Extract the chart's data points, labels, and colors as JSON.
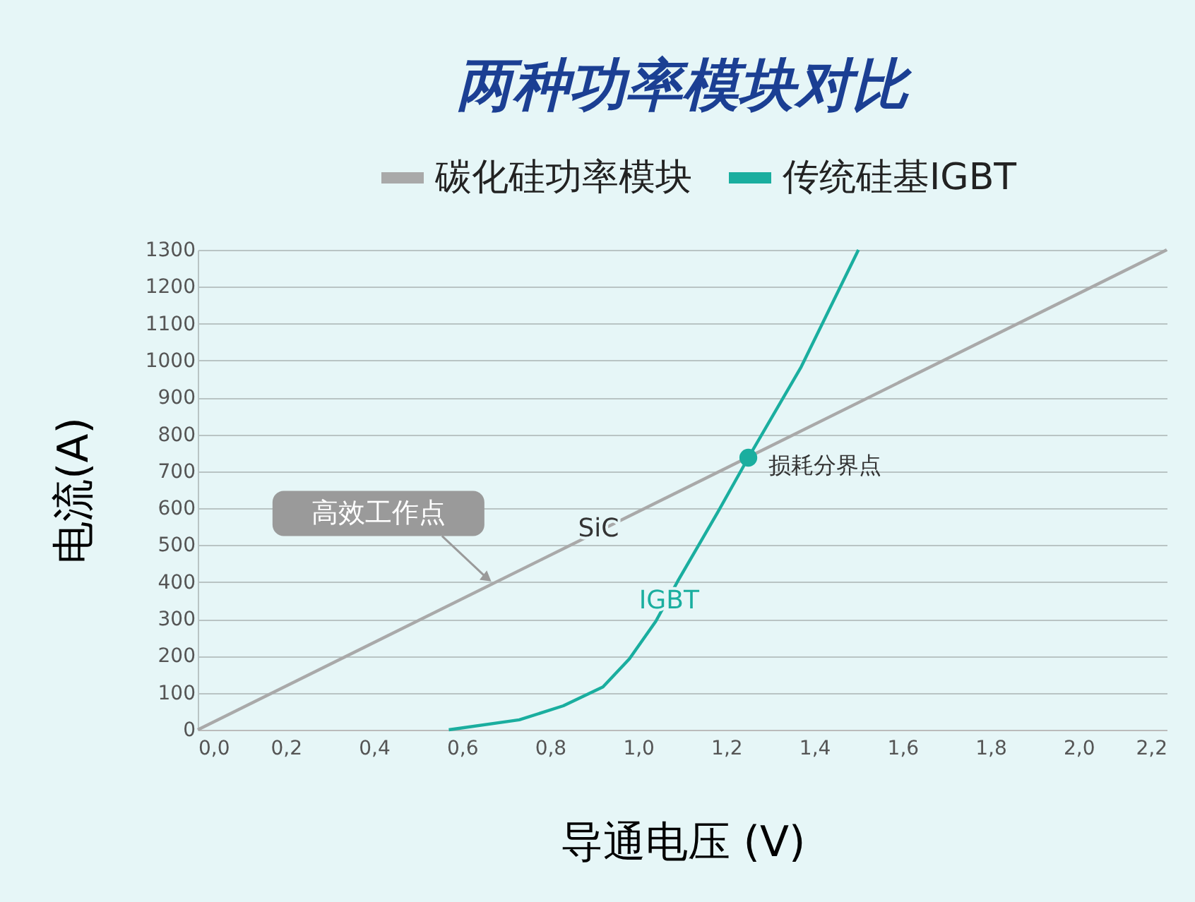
{
  "chart_data": {
    "type": "line",
    "title": "两种功率模块对比",
    "xlabel": "导通电压 (V)",
    "ylabel": "电流(A)",
    "xlim": [
      0,
      2.2
    ],
    "ylim": [
      0,
      1300
    ],
    "xticks": [
      {
        "value": 0,
        "label": "0,0"
      },
      {
        "value": 0.2,
        "label": "0,2"
      },
      {
        "value": 0.4,
        "label": "0,4"
      },
      {
        "value": 0.6,
        "label": "0,6"
      },
      {
        "value": 0.8,
        "label": "0,8"
      },
      {
        "value": 1.0,
        "label": "1,0"
      },
      {
        "value": 1.2,
        "label": "1,2"
      },
      {
        "value": 1.4,
        "label": "1,4"
      },
      {
        "value": 1.6,
        "label": "1,6"
      },
      {
        "value": 1.8,
        "label": "1,8"
      },
      {
        "value": 2.0,
        "label": "2,0"
      },
      {
        "value": 2.2,
        "label": "2,2"
      }
    ],
    "yticks": [
      0,
      100,
      200,
      300,
      400,
      500,
      600,
      700,
      800,
      900,
      1000,
      1100,
      1200,
      1300
    ],
    "grid": "y",
    "legend": "top right",
    "marker": "none",
    "line_style": "solid",
    "series": [
      {
        "name": "碳化硅功率模块",
        "color": "#a9a9a9",
        "x": [
          0,
          2.2
        ],
        "values": [
          0,
          1300
        ]
      },
      {
        "name": "传统硅基IGBT",
        "color": "#1aae9f",
        "x": [
          0.57,
          0.73,
          0.83,
          0.92,
          0.98,
          1.04,
          1.09,
          1.18,
          1.25,
          1.37,
          1.5
        ],
        "values": [
          0,
          27,
          65,
          116,
          192,
          294,
          403,
          588,
          737,
          983,
          1300
        ]
      }
    ],
    "annotations": [
      {
        "text": "高效工作点",
        "x": 0.67,
        "y": 395
      },
      {
        "text": "损耗分界点",
        "x": 1.25,
        "y": 737
      },
      {
        "text": "SiC",
        "x": 0.91,
        "y": 543
      },
      {
        "text": "IGBT",
        "x": 1.07,
        "y": 348
      }
    ]
  }
}
